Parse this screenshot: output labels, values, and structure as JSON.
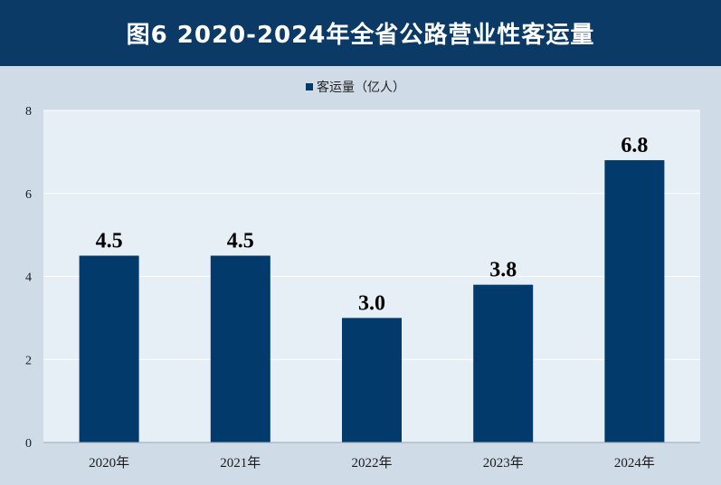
{
  "header": {
    "title": "图6  2020-2024年全省公路营业性客运量",
    "background": "#0b3a66"
  },
  "colors": {
    "page_background": "#cfdbe7",
    "plot_background": "#e6eef6",
    "bar": "#013a6b",
    "gridline": "#ffffff",
    "text": "#1a1a1a"
  },
  "chart_data": {
    "type": "bar",
    "categories": [
      "2020年",
      "2021年",
      "2022年",
      "2023年",
      "2024年"
    ],
    "series": [
      {
        "name": "客运量（亿人）",
        "values": [
          4.5,
          4.5,
          3.0,
          3.8,
          6.8
        ]
      }
    ],
    "data_labels": [
      "4.5",
      "4.5",
      "3.0",
      "3.8",
      "6.8"
    ],
    "y_ticks": [
      "0",
      "2",
      "4",
      "6",
      "8"
    ],
    "ylim": [
      0,
      8
    ],
    "grid": true,
    "legend": {
      "position": "top-center",
      "label": "客运量（亿人）"
    },
    "title": "图6  2020-2024年全省公路营业性客运量"
  }
}
